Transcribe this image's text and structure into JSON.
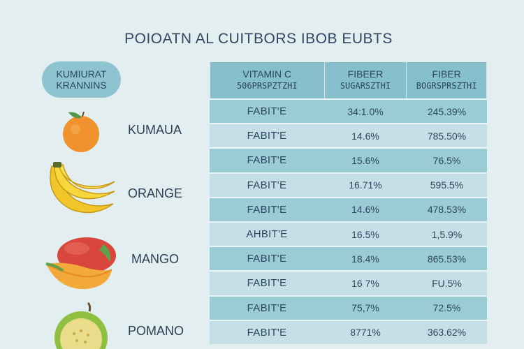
{
  "header": {
    "title": "POIOATN AL CUITBORS IBOB EUBTS"
  },
  "badge": {
    "line1": "KUMIURAT",
    "line2": "KRANNINS"
  },
  "fruits": [
    {
      "label": "KUMAUA",
      "icon": "orange-icon"
    },
    {
      "label": "ORANGE",
      "icon": "banana-icon"
    },
    {
      "label": "MANGO",
      "icon": "mango-icon"
    },
    {
      "label": "POMANO",
      "icon": "guava-icon"
    }
  ],
  "table": {
    "columns": [
      {
        "line1": "VITAMIN C",
        "line2": "506PRSPZTZHI"
      },
      {
        "line1": "FIBEER",
        "line2": "SUGARSZTHI"
      },
      {
        "line1": "FIBER",
        "line2": "BOGRSPRSZTHI"
      }
    ],
    "rows": [
      {
        "name": "FABIT'E",
        "v1": "34:1.0%",
        "v2": "245.39%"
      },
      {
        "name": "FABIT'E",
        "v1": "14.6%",
        "v2": "785.50%"
      },
      {
        "name": "FABIT'E",
        "v1": "15.6%",
        "v2": "76.5%"
      },
      {
        "name": "FABIT'E",
        "v1": "16.71%",
        "v2": "595.5%"
      },
      {
        "name": "FABIT'E",
        "v1": "14.6%",
        "v2": "478.53%"
      },
      {
        "name": "AHBIT'E",
        "v1": "16.5%",
        "v2": "1,5.9%"
      },
      {
        "name": "FABIT'E",
        "v1": "18.4%",
        "v2": "865.53%"
      },
      {
        "name": "FABIT'E",
        "v1": "16 7%",
        "v2": "FU.5%"
      },
      {
        "name": "FABIT'E",
        "v1": "75,7%",
        "v2": "72.5%"
      },
      {
        "name": "FABIT'E",
        "v1": "8771%",
        "v2": "363.62%"
      }
    ]
  },
  "colors": {
    "background": "#e3eef0",
    "header_fill": "#86c0cc",
    "row_dark": "#9bcbd5",
    "row_light": "#c4e0e6",
    "text": "#2b3f55"
  }
}
